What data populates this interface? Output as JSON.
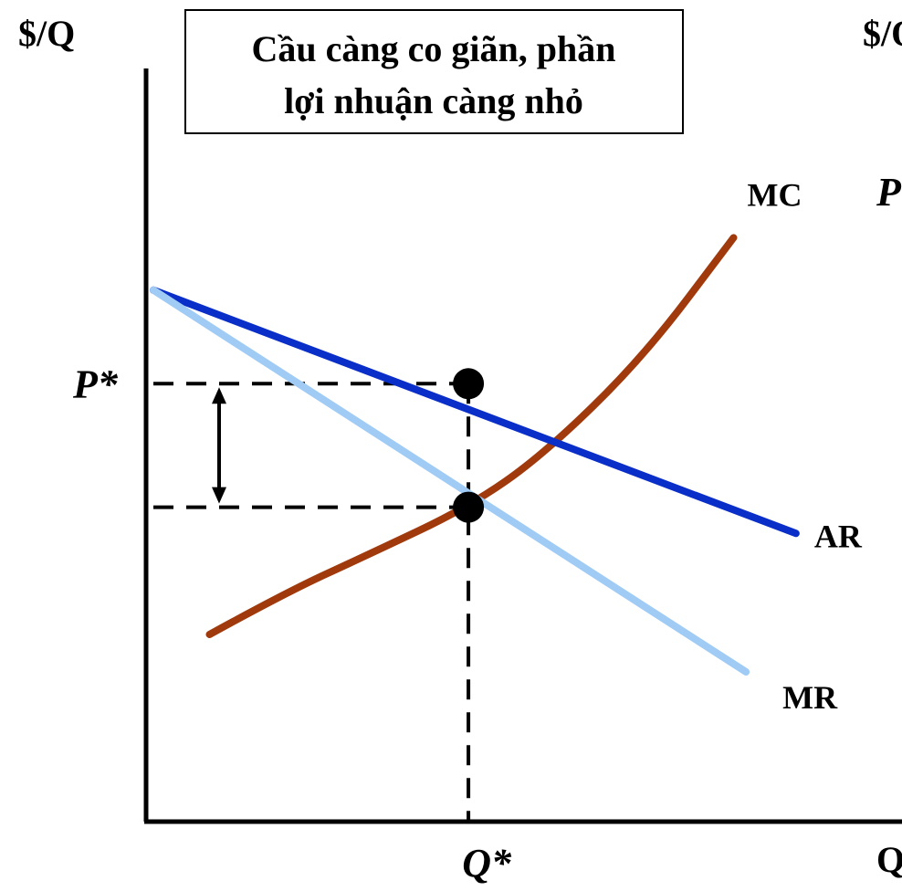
{
  "chart_data": {
    "type": "line",
    "title_lines": [
      "Cầu càng co giãn, phần",
      "lợi nhuận càng nhỏ"
    ],
    "ylabel": "$/Q",
    "xlabel": "Q",
    "right_panel_ylabel": "$/Q",
    "right_panel_label": "P",
    "series": [
      {
        "name": "MC",
        "color": "#a0390c",
        "x": [
          1.8,
          4.2,
          6.8,
          10.1,
          12.5,
          15.7,
          18.6
        ],
        "y": [
          5.0,
          6.1,
          7.1,
          8.4,
          9.8,
          12.4,
          15.6
        ]
      },
      {
        "name": "AR",
        "color": "#0a2ec8",
        "x": [
          0.0,
          20.6
        ],
        "y": [
          14.2,
          7.7
        ]
      },
      {
        "name": "MR",
        "color": "#9fcbf5",
        "x": [
          0.0,
          19.0
        ],
        "y": [
          14.2,
          4.0
        ]
      }
    ],
    "equilibrium": {
      "q_star": {
        "label": "Q*",
        "x": 10.1
      },
      "p_star": {
        "label": "P*",
        "y": 11.7
      },
      "mc_value": 8.4
    },
    "xlim": [
      0,
      24
    ],
    "ylim": [
      0,
      20
    ],
    "grid": false,
    "legend": "none"
  }
}
